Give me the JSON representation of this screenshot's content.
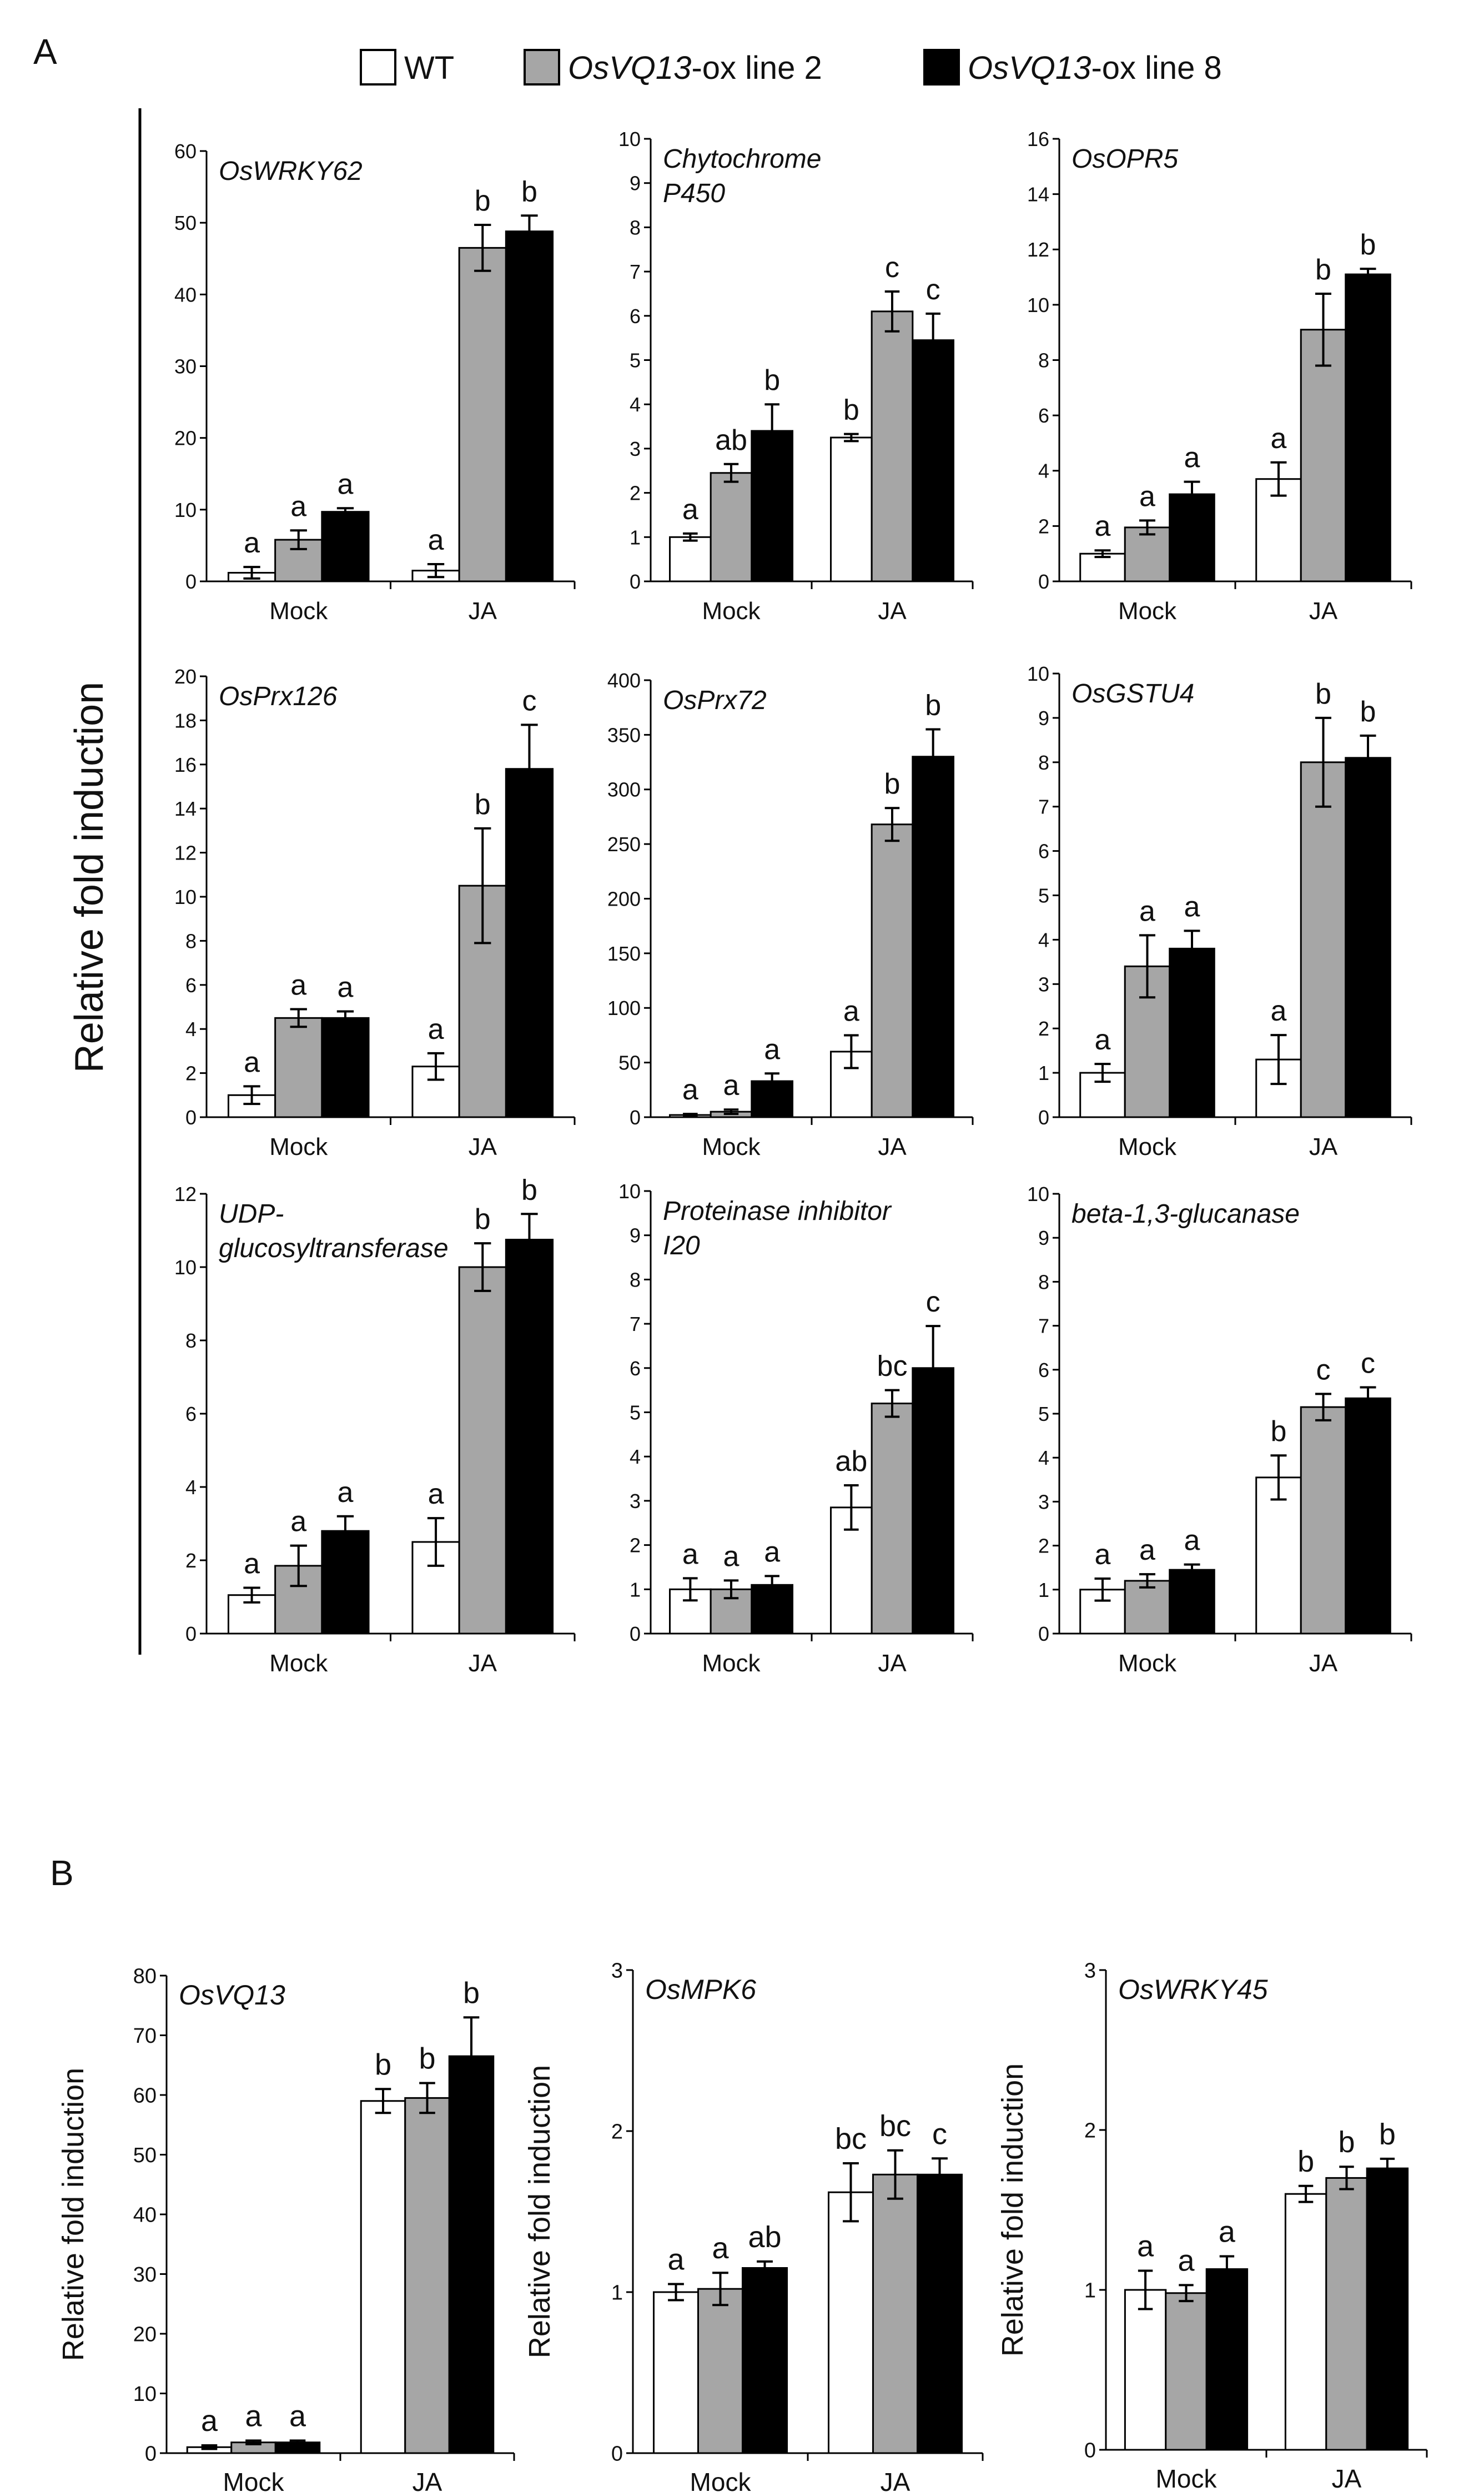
{
  "panel_labels": {
    "a": "A",
    "b": "B"
  },
  "legend": {
    "entries": [
      {
        "prefix": "",
        "italic": "",
        "text": "WT",
        "color": "#ffffff"
      },
      {
        "prefix": "",
        "italic": "OsVQ13",
        "text": "-ox line 2",
        "color": "#a6a6a6"
      },
      {
        "prefix": "",
        "italic": "OsVQ13",
        "text": "-ox line 8",
        "color": "#000000"
      }
    ]
  },
  "panel_a_ylabel": "Relative fold induction",
  "chart_data": [
    {
      "type": "bar",
      "panel": "A",
      "title": [
        "OsWRKY62"
      ],
      "categories": [
        "Mock",
        "JA"
      ],
      "ylim": [
        0,
        60
      ],
      "yticks": [
        0,
        10,
        20,
        30,
        40,
        50,
        60
      ],
      "series": [
        {
          "name": "WT",
          "values": [
            1.2,
            1.5
          ],
          "errors": [
            0.8,
            0.9
          ]
        },
        {
          "name": "OsVQ13-ox line 2",
          "values": [
            5.8,
            46.5
          ],
          "errors": [
            1.3,
            3.2
          ]
        },
        {
          "name": "OsVQ13-ox line 8",
          "values": [
            9.7,
            48.8
          ],
          "errors": [
            0.5,
            2.2
          ]
        }
      ],
      "letters": [
        [
          "a",
          "a"
        ],
        [
          "a",
          "b"
        ],
        [
          "a",
          "b"
        ]
      ]
    },
    {
      "type": "bar",
      "panel": "A",
      "title": [
        "Chytochrome",
        "P450"
      ],
      "categories": [
        "Mock",
        "JA"
      ],
      "ylim": [
        0,
        10
      ],
      "yticks": [
        0,
        1,
        2,
        3,
        4,
        5,
        6,
        7,
        8,
        9,
        10
      ],
      "series": [
        {
          "name": "WT",
          "values": [
            1.0,
            3.25
          ],
          "errors": [
            0.08,
            0.08
          ]
        },
        {
          "name": "OsVQ13-ox line 2",
          "values": [
            2.45,
            6.1
          ],
          "errors": [
            0.2,
            0.45
          ]
        },
        {
          "name": "OsVQ13-ox line 8",
          "values": [
            3.4,
            5.45
          ],
          "errors": [
            0.6,
            0.6
          ]
        }
      ],
      "letters": [
        [
          "a",
          "b"
        ],
        [
          "ab",
          "c"
        ],
        [
          "b",
          "c"
        ]
      ]
    },
    {
      "type": "bar",
      "panel": "A",
      "title": [
        "OsOPR5"
      ],
      "categories": [
        "Mock",
        "JA"
      ],
      "ylim": [
        0,
        16
      ],
      "yticks": [
        0,
        2,
        4,
        6,
        8,
        10,
        12,
        14,
        16
      ],
      "series": [
        {
          "name": "WT",
          "values": [
            1.0,
            3.7
          ],
          "errors": [
            0.12,
            0.6
          ]
        },
        {
          "name": "OsVQ13-ox line 2",
          "values": [
            1.95,
            9.1
          ],
          "errors": [
            0.25,
            1.3
          ]
        },
        {
          "name": "OsVQ13-ox line 8",
          "values": [
            3.15,
            11.1
          ],
          "errors": [
            0.45,
            0.2
          ]
        }
      ],
      "letters": [
        [
          "a",
          "a"
        ],
        [
          "a",
          "b"
        ],
        [
          "a",
          "b"
        ]
      ]
    },
    {
      "type": "bar",
      "panel": "A",
      "title": [
        "OsPrx126"
      ],
      "categories": [
        "Mock",
        "JA"
      ],
      "ylim": [
        0,
        20
      ],
      "yticks": [
        0,
        2,
        4,
        6,
        8,
        10,
        12,
        14,
        16,
        18,
        20
      ],
      "series": [
        {
          "name": "WT",
          "values": [
            1.0,
            2.3
          ],
          "errors": [
            0.4,
            0.6
          ]
        },
        {
          "name": "OsVQ13-ox line 2",
          "values": [
            4.5,
            10.5
          ],
          "errors": [
            0.4,
            2.6
          ]
        },
        {
          "name": "OsVQ13-ox line 8",
          "values": [
            4.5,
            15.8
          ],
          "errors": [
            0.3,
            2.0
          ]
        }
      ],
      "letters": [
        [
          "a",
          "a"
        ],
        [
          "a",
          "b"
        ],
        [
          "a",
          "c"
        ]
      ]
    },
    {
      "type": "bar",
      "panel": "A",
      "title": [
        "OsPrx72"
      ],
      "categories": [
        "Mock",
        "JA"
      ],
      "ylim": [
        0,
        400
      ],
      "yticks": [
        0,
        50,
        100,
        150,
        200,
        250,
        300,
        350,
        400
      ],
      "series": [
        {
          "name": "WT",
          "values": [
            2,
            60
          ],
          "errors": [
            1,
            15
          ]
        },
        {
          "name": "OsVQ13-ox line 2",
          "values": [
            5,
            268
          ],
          "errors": [
            2,
            15
          ]
        },
        {
          "name": "OsVQ13-ox line 8",
          "values": [
            33,
            330
          ],
          "errors": [
            7,
            25
          ]
        }
      ],
      "letters": [
        [
          "a",
          "a"
        ],
        [
          "a",
          "b"
        ],
        [
          "a",
          "b"
        ]
      ]
    },
    {
      "type": "bar",
      "panel": "A",
      "title": [
        "OsGSTU4"
      ],
      "categories": [
        "Mock",
        "JA"
      ],
      "ylim": [
        0,
        10
      ],
      "yticks": [
        0,
        1,
        2,
        3,
        4,
        5,
        6,
        7,
        8,
        9,
        10
      ],
      "series": [
        {
          "name": "WT",
          "values": [
            1.0,
            1.3
          ],
          "errors": [
            0.2,
            0.55
          ]
        },
        {
          "name": "OsVQ13-ox line 2",
          "values": [
            3.4,
            8.0
          ],
          "errors": [
            0.7,
            1.0
          ]
        },
        {
          "name": "OsVQ13-ox line 8",
          "values": [
            3.8,
            8.1
          ],
          "errors": [
            0.4,
            0.5
          ]
        }
      ],
      "letters": [
        [
          "a",
          "a"
        ],
        [
          "a",
          "b"
        ],
        [
          "a",
          "b"
        ]
      ]
    },
    {
      "type": "bar",
      "panel": "A",
      "title": [
        "UDP-",
        "glucosyltransferase"
      ],
      "categories": [
        "Mock",
        "JA"
      ],
      "ylim": [
        0,
        12
      ],
      "yticks": [
        0,
        2,
        4,
        6,
        8,
        10,
        12
      ],
      "series": [
        {
          "name": "WT",
          "values": [
            1.05,
            2.5
          ],
          "errors": [
            0.2,
            0.65
          ]
        },
        {
          "name": "OsVQ13-ox line 2",
          "values": [
            1.85,
            10.0
          ],
          "errors": [
            0.55,
            0.65
          ]
        },
        {
          "name": "OsVQ13-ox line 8",
          "values": [
            2.8,
            10.75
          ],
          "errors": [
            0.4,
            0.7
          ]
        }
      ],
      "letters": [
        [
          "a",
          "a"
        ],
        [
          "a",
          "b"
        ],
        [
          "a",
          "b"
        ]
      ]
    },
    {
      "type": "bar",
      "panel": "A",
      "title": [
        "Proteinase inhibitor",
        "I20"
      ],
      "categories": [
        "Mock",
        "JA"
      ],
      "ylim": [
        0,
        10
      ],
      "yticks": [
        0,
        1,
        2,
        3,
        4,
        5,
        6,
        7,
        8,
        9,
        10
      ],
      "series": [
        {
          "name": "WT",
          "values": [
            1.0,
            2.85
          ],
          "errors": [
            0.25,
            0.5
          ]
        },
        {
          "name": "OsVQ13-ox line 2",
          "values": [
            1.0,
            5.2
          ],
          "errors": [
            0.2,
            0.3
          ]
        },
        {
          "name": "OsVQ13-ox line 8",
          "values": [
            1.1,
            6.0
          ],
          "errors": [
            0.2,
            0.95
          ]
        }
      ],
      "letters": [
        [
          "a",
          "ab"
        ],
        [
          "a",
          "bc"
        ],
        [
          "a",
          "c"
        ]
      ]
    },
    {
      "type": "bar",
      "panel": "A",
      "title": [
        "beta-1,3-glucanase"
      ],
      "categories": [
        "Mock",
        "JA"
      ],
      "ylim": [
        0,
        10
      ],
      "yticks": [
        0,
        1,
        2,
        3,
        4,
        5,
        6,
        7,
        8,
        9,
        10
      ],
      "series": [
        {
          "name": "WT",
          "values": [
            1.0,
            3.55
          ],
          "errors": [
            0.25,
            0.5
          ]
        },
        {
          "name": "OsVQ13-ox line 2",
          "values": [
            1.2,
            5.15
          ],
          "errors": [
            0.15,
            0.3
          ]
        },
        {
          "name": "OsVQ13-ox line 8",
          "values": [
            1.45,
            5.35
          ],
          "errors": [
            0.12,
            0.25
          ]
        }
      ],
      "letters": [
        [
          "a",
          "b"
        ],
        [
          "a",
          "c"
        ],
        [
          "a",
          "c"
        ]
      ]
    },
    {
      "type": "bar",
      "panel": "B",
      "title": [
        "OsVQ13"
      ],
      "ylabel": "Relative fold induction",
      "categories": [
        "Mock",
        "JA"
      ],
      "ylim": [
        0,
        80
      ],
      "yticks": [
        0,
        10,
        20,
        30,
        40,
        50,
        60,
        70,
        80
      ],
      "series": [
        {
          "name": "WT",
          "values": [
            1.0,
            59.0
          ],
          "errors": [
            0.3,
            2.0
          ]
        },
        {
          "name": "OsVQ13-ox line 2",
          "values": [
            1.8,
            59.5
          ],
          "errors": [
            0.3,
            2.5
          ]
        },
        {
          "name": "OsVQ13-ox line 8",
          "values": [
            1.8,
            66.5
          ],
          "errors": [
            0.3,
            6.5
          ]
        }
      ],
      "letters": [
        [
          "a",
          "b"
        ],
        [
          "a",
          "b"
        ],
        [
          "a",
          "b"
        ]
      ]
    },
    {
      "type": "bar",
      "panel": "B",
      "title": [
        "OsMPK6"
      ],
      "ylabel": "Relative fold induction",
      "categories": [
        "Mock",
        "JA"
      ],
      "ylim": [
        0,
        3
      ],
      "yticks": [
        0,
        1,
        2,
        3
      ],
      "series": [
        {
          "name": "WT",
          "values": [
            1.0,
            1.62
          ],
          "errors": [
            0.05,
            0.18
          ]
        },
        {
          "name": "OsVQ13-ox line 2",
          "values": [
            1.02,
            1.73
          ],
          "errors": [
            0.1,
            0.15
          ]
        },
        {
          "name": "OsVQ13-ox line 8",
          "values": [
            1.15,
            1.73
          ],
          "errors": [
            0.04,
            0.1
          ]
        }
      ],
      "letters": [
        [
          "a",
          "bc"
        ],
        [
          "a",
          "bc"
        ],
        [
          "ab",
          "c"
        ]
      ]
    },
    {
      "type": "bar",
      "panel": "B",
      "title": [
        "OsWRKY45"
      ],
      "ylabel": "Relative fold induction",
      "categories": [
        "Mock",
        "JA"
      ],
      "ylim": [
        0,
        3
      ],
      "yticks": [
        0,
        1,
        2,
        3
      ],
      "series": [
        {
          "name": "WT",
          "values": [
            1.0,
            1.6
          ],
          "errors": [
            0.12,
            0.05
          ]
        },
        {
          "name": "OsVQ13-ox line 2",
          "values": [
            0.98,
            1.7
          ],
          "errors": [
            0.05,
            0.07
          ]
        },
        {
          "name": "OsVQ13-ox line 8",
          "values": [
            1.13,
            1.76
          ],
          "errors": [
            0.08,
            0.06
          ]
        }
      ],
      "letters": [
        [
          "a",
          "b"
        ],
        [
          "a",
          "b"
        ],
        [
          "a",
          "b"
        ]
      ]
    }
  ]
}
